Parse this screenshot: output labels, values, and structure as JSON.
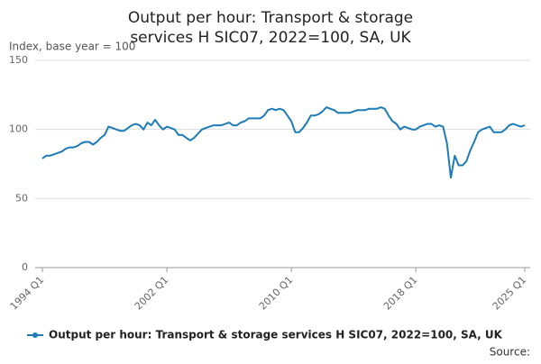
{
  "chart_data": {
    "type": "line",
    "title": "Output per hour: Transport & storage services H SIC07, 2022=100, SA, UK",
    "y_label": "Index, base year = 100",
    "source": "Source:",
    "categories": [
      "1994 Q1",
      null,
      null,
      null,
      null,
      null,
      null,
      null,
      null,
      null,
      null,
      null,
      null,
      null,
      null,
      null,
      null,
      null,
      null,
      null,
      null,
      null,
      null,
      null,
      null,
      null,
      null,
      null,
      null,
      null,
      null,
      null,
      "2002 Q1",
      null,
      null,
      null,
      null,
      null,
      null,
      null,
      null,
      null,
      null,
      null,
      null,
      null,
      null,
      null,
      null,
      null,
      null,
      null,
      null,
      null,
      null,
      null,
      null,
      null,
      null,
      null,
      null,
      null,
      null,
      null,
      "2010 Q1",
      null,
      null,
      null,
      null,
      null,
      null,
      null,
      null,
      null,
      null,
      null,
      null,
      null,
      null,
      null,
      null,
      null,
      null,
      null,
      null,
      null,
      null,
      null,
      null,
      null,
      null,
      null,
      null,
      null,
      null,
      null,
      "2018 Q1",
      null,
      null,
      null,
      null,
      null,
      null,
      null,
      null,
      null,
      null,
      null,
      null,
      null,
      null,
      null,
      null,
      null,
      null,
      null,
      null,
      null,
      null,
      null,
      null,
      null,
      null,
      null,
      "2025 Q1"
    ],
    "series": [
      {
        "name": "Output per hour: Transport & storage services H SIC07, 2022=100, SA, UK",
        "color": "#1d7bb8",
        "values": [
          79,
          81,
          81,
          82,
          83,
          84,
          86,
          87,
          87,
          88,
          90,
          91,
          91,
          89,
          91,
          94,
          96,
          102,
          101,
          100,
          99,
          99,
          101,
          103,
          104,
          103,
          100,
          105,
          103,
          107,
          103,
          100,
          102,
          101,
          100,
          96,
          96,
          94,
          92,
          94,
          97,
          100,
          101,
          102,
          103,
          103,
          103,
          104,
          105,
          103,
          103,
          105,
          106,
          108,
          108,
          108,
          108,
          110,
          114,
          115,
          114,
          115,
          114,
          110,
          106,
          98,
          98,
          101,
          105,
          110,
          110,
          111,
          113,
          116,
          115,
          114,
          112,
          112,
          112,
          112,
          113,
          114,
          114,
          114,
          115,
          115,
          115,
          116,
          115,
          110,
          106,
          104,
          100,
          102,
          101,
          100,
          100,
          102,
          103,
          104,
          104,
          102,
          103,
          102,
          90,
          65,
          81,
          74,
          74,
          77,
          85,
          91,
          98,
          100,
          101,
          102,
          98,
          98,
          98,
          100,
          103,
          104,
          103,
          102,
          103
        ]
      }
    ],
    "ylim": [
      0,
      150
    ],
    "yticks": [
      0,
      50,
      100,
      150
    ],
    "grid": true
  }
}
